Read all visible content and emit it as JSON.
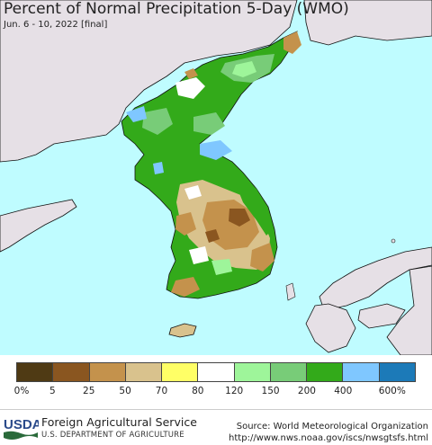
{
  "header": {
    "title": "Percent of Normal Precipitation 5-Day (WMO)",
    "subtitle": "Jun. 6 - 10, 2022 [final]"
  },
  "legend": {
    "colors": [
      "#4f3a14",
      "#8a5620",
      "#c4924c",
      "#d9c28d",
      "#ffff66",
      "#ffffff",
      "#9ef59a",
      "#78cc78",
      "#33aa1a",
      "#7fc7ff",
      "#1c7ab8"
    ],
    "ticks": [
      "0%",
      "5",
      "25",
      "50",
      "70",
      "80",
      "120",
      "150",
      "200",
      "400",
      "600%"
    ]
  },
  "map_colors": {
    "water": "#bffcff",
    "land_other": "#e6e0e6",
    "green_dark": "#33aa1a",
    "green_mid": "#78cc78",
    "green_light": "#9ef59a",
    "brown_light": "#d9c28d",
    "brown_mid": "#c4924c",
    "brown_dark": "#8a5620",
    "blue_light": "#7fc7ff"
  },
  "footer": {
    "logo_text": "USDA",
    "agency": "Foreign Agricultural Service",
    "department": "U.S. DEPARTMENT OF AGRICULTURE",
    "source_line1": "Source: World Meteorological Organization",
    "source_line2": "http://www.nws.noaa.gov/iscs/nwsgtsfs.html"
  }
}
